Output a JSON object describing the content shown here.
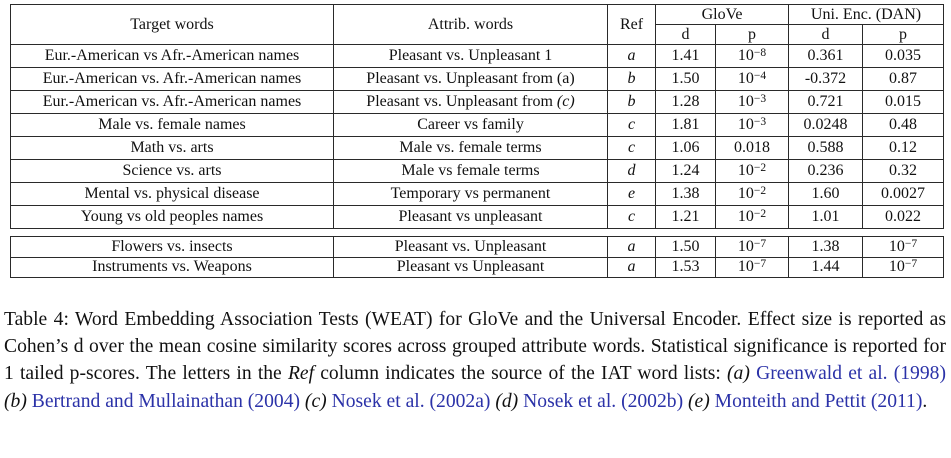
{
  "accent_colors": {
    "link_blue": "#2b32a8",
    "text_black": "#111111",
    "border": "#2a2a2a"
  },
  "table": {
    "columns": {
      "target": "Target words",
      "attrib": "Attrib. words",
      "ref": "Ref",
      "glove": "GloVe",
      "uni_enc": "Uni. Enc. (DAN)",
      "d": "d",
      "p": "p"
    },
    "sections": [
      {
        "rows": [
          {
            "target": "Eur.-American vs Afr.-American names",
            "attrib": "Pleasant vs. Unpleasant 1",
            "ref": "a",
            "glove_d": "1.41",
            "glove_p": "10^−8",
            "uni_d": "0.361",
            "uni_p": "0.035"
          },
          {
            "target": "Eur.-American vs. Afr.-American names",
            "attrib": "Pleasant vs. Unpleasant from (a)",
            "ref": "b",
            "glove_d": "1.50",
            "glove_p": "10^−4",
            "uni_d": "-0.372",
            "uni_p": "0.87"
          },
          {
            "target": "Eur.-American vs. Afr.-American names",
            "attrib": "Pleasant vs. Unpleasant from",
            "attrib_italic_suffix": "(c)",
            "ref": "b",
            "glove_d": "1.28",
            "glove_p": "10^−3",
            "uni_d": "0.721",
            "uni_p": "0.015"
          },
          {
            "target": "Male vs. female names",
            "attrib": "Career vs family",
            "ref": "c",
            "glove_d": "1.81",
            "glove_p": "10^−3",
            "uni_d": "0.0248",
            "uni_p": "0.48"
          },
          {
            "target": "Math vs. arts",
            "attrib": "Male vs. female terms",
            "ref": "c",
            "glove_d": "1.06",
            "glove_p": "0.018",
            "uni_d": "0.588",
            "uni_p": "0.12"
          },
          {
            "target": "Science vs. arts",
            "attrib": "Male vs female terms",
            "ref": "d",
            "glove_d": "1.24",
            "glove_p": "10^−2",
            "uni_d": "0.236",
            "uni_p": "0.32"
          },
          {
            "target": "Mental vs. physical disease",
            "attrib": "Temporary vs permanent",
            "ref": "e",
            "glove_d": "1.38",
            "glove_p": "10^−2",
            "uni_d": "1.60",
            "uni_p": "0.0027"
          },
          {
            "target": "Young vs old peoples names",
            "attrib": "Pleasant vs unpleasant",
            "ref": "c",
            "glove_d": "1.21",
            "glove_p": "10^−2",
            "uni_d": "1.01",
            "uni_p": "0.022"
          }
        ]
      },
      {
        "rows": [
          {
            "target": "Flowers vs. insects",
            "attrib": "Pleasant vs. Unpleasant",
            "ref": "a",
            "glove_d": "1.50",
            "glove_p": "10^−7",
            "uni_d": "1.38",
            "uni_p": "10^−7"
          },
          {
            "target": "Instruments vs. Weapons",
            "attrib": "Pleasant vs Unpleasant",
            "ref": "a",
            "glove_d": "1.53",
            "glove_p": "10^−7",
            "uni_d": "1.44",
            "uni_p": "10^−7"
          }
        ]
      }
    ]
  },
  "caption": {
    "segments": [
      {
        "style": "plain",
        "t": "Table 4: Word Embedding Association Tests (WEAT) for GloVe and the Universal Encoder. Effect size is reported as Cohen’s d over the mean cosine similarity scores across grouped attribute words. Statistical significance is reported for 1 tailed p-scores. The letters in the "
      },
      {
        "style": "italic",
        "t": "Ref"
      },
      {
        "style": "plain",
        "t": " column indicates the source of the IAT word lists: "
      },
      {
        "style": "mathit",
        "t": "(a)"
      },
      {
        "style": "plain",
        "t": " "
      },
      {
        "style": "link",
        "t": "Greenwald et al. (1998)"
      },
      {
        "style": "plain",
        "t": " "
      },
      {
        "style": "mathit",
        "t": "(b)"
      },
      {
        "style": "plain",
        "t": " "
      },
      {
        "style": "link",
        "t": "Bertrand and Mullainathan (2004)"
      },
      {
        "style": "plain",
        "t": " "
      },
      {
        "style": "mathit",
        "t": "(c)"
      },
      {
        "style": "plain",
        "t": " "
      },
      {
        "style": "link",
        "t": "Nosek et al. (2002a)"
      },
      {
        "style": "plain",
        "t": " "
      },
      {
        "style": "mathit",
        "t": "(d)"
      },
      {
        "style": "plain",
        "t": " "
      },
      {
        "style": "link",
        "t": "Nosek et al. (2002b)"
      },
      {
        "style": "plain",
        "t": " "
      },
      {
        "style": "mathit",
        "t": "(e)"
      },
      {
        "style": "plain",
        "t": " "
      },
      {
        "style": "link",
        "t": "Monteith and Pettit (2011)"
      },
      {
        "style": "plain",
        "t": "."
      }
    ]
  }
}
